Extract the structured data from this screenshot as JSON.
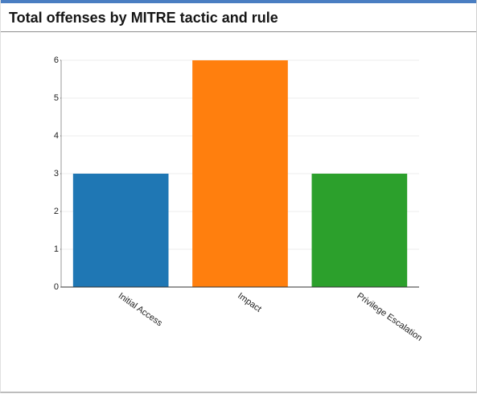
{
  "title": "Total offenses by MITRE tactic and rule",
  "chart_data": {
    "type": "bar",
    "categories": [
      "Initial Access",
      "Impact",
      "Privilege Escalation"
    ],
    "values": [
      3,
      6,
      3
    ],
    "colors": [
      "#1f77b4",
      "#ff7f0e",
      "#2ca02c"
    ],
    "ylim": [
      0,
      6
    ],
    "yticks": [
      0,
      1,
      2,
      3,
      4,
      5,
      6
    ],
    "grid": true
  }
}
